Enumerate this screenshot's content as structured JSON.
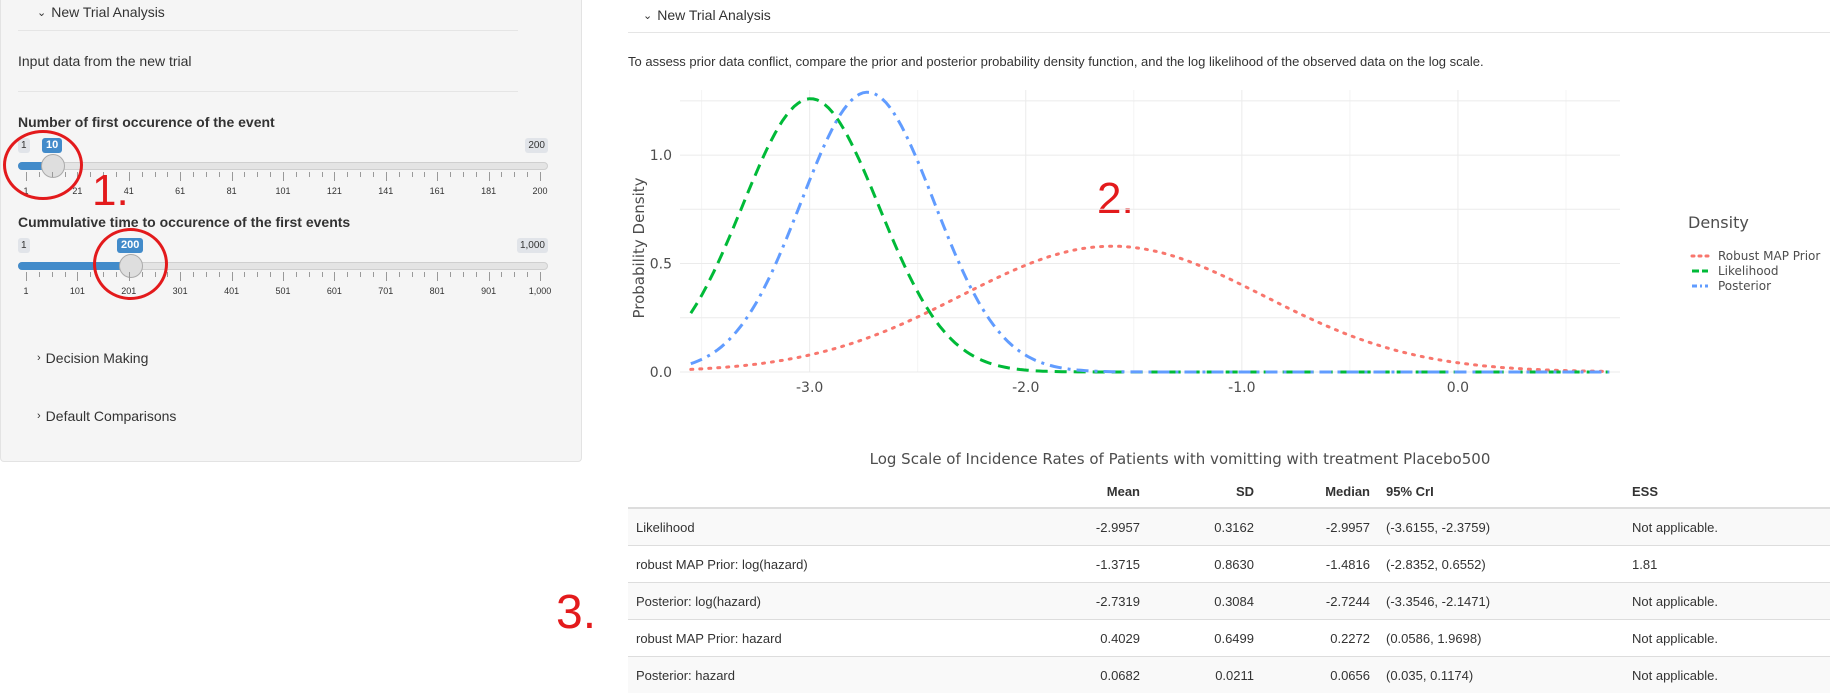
{
  "sidebar": {
    "new_trial_header": "New Trial Analysis",
    "input_text": "Input data from the new trial",
    "slider1": {
      "label": "Number of first occurence of the event",
      "min_label": "1",
      "max_label": "200",
      "value_label": "10",
      "min": 1,
      "max": 200,
      "value": 10,
      "ticks": [
        "1",
        "21",
        "41",
        "61",
        "81",
        "101",
        "121",
        "141",
        "161",
        "181",
        "200"
      ]
    },
    "slider2": {
      "label": "Cummulative time to occurence of the first events",
      "min_label": "1",
      "max_label": "1,000",
      "value_label": "200",
      "min": 1,
      "max": 1000,
      "value": 200,
      "ticks": [
        "1",
        "101",
        "201",
        "301",
        "401",
        "501",
        "601",
        "701",
        "801",
        "901",
        "1,000"
      ]
    },
    "decision_header": "Decision Making",
    "default_header": "Default Comparisons"
  },
  "annotations": {
    "a1": "1.",
    "a2": "2.",
    "a3": "3."
  },
  "main": {
    "header": "New Trial Analysis",
    "description": "To assess prior data conflict, compare the prior and posterior probability density function, and the log likelihood of the observed data on the log scale."
  },
  "chart_data": {
    "type": "line",
    "xlabel": "Log Scale of Incidence Rates of Patients with vomitting with treatment Placebo500",
    "ylabel": "Probability Density",
    "xlim": [
      -3.6,
      0.75
    ],
    "ylim": [
      0,
      1.3
    ],
    "xticks": [
      "-3.0",
      "-2.0",
      "-1.0",
      "0.0"
    ],
    "yticks": [
      "0.0",
      "0.5",
      "1.0"
    ],
    "legend_title": "Density",
    "legend_position": "right",
    "grid": true,
    "series": [
      {
        "name": "Robust MAP Prior",
        "color": "#F8766D",
        "style": "dotted",
        "dist": {
          "type": "normal",
          "mean": -1.6,
          "sd": 0.7,
          "scale": 0.58
        }
      },
      {
        "name": "Likelihood",
        "color": "#00BA38",
        "style": "dashed",
        "dist": {
          "type": "normal",
          "mean": -2.9957,
          "sd": 0.3162,
          "scale": 1.26
        }
      },
      {
        "name": "Posterior",
        "color": "#619CFF",
        "style": "dashdot",
        "dist": {
          "type": "normal",
          "mean": -2.7319,
          "sd": 0.3084,
          "scale": 1.29
        }
      }
    ]
  },
  "table": {
    "headers": [
      "",
      "Mean",
      "SD",
      "Median",
      "95% CrI",
      "ESS"
    ],
    "rows": [
      [
        "Likelihood",
        "-2.9957",
        "0.3162",
        "-2.9957",
        "(-3.6155, -2.3759)",
        "Not applicable."
      ],
      [
        "robust MAP Prior: log(hazard)",
        "-1.3715",
        "0.8630",
        "-1.4816",
        "(-2.8352, 0.6552)",
        "1.81"
      ],
      [
        "Posterior: log(hazard)",
        "-2.7319",
        "0.3084",
        "-2.7244",
        "(-3.3546, -2.1471)",
        "Not applicable."
      ],
      [
        "robust MAP Prior: hazard",
        "0.4029",
        "0.6499",
        "0.2272",
        "(0.0586, 1.9698)",
        "Not applicable."
      ],
      [
        "Posterior: hazard",
        "0.0682",
        "0.0211",
        "0.0656",
        "(0.035, 0.1174)",
        "Not applicable."
      ]
    ]
  }
}
